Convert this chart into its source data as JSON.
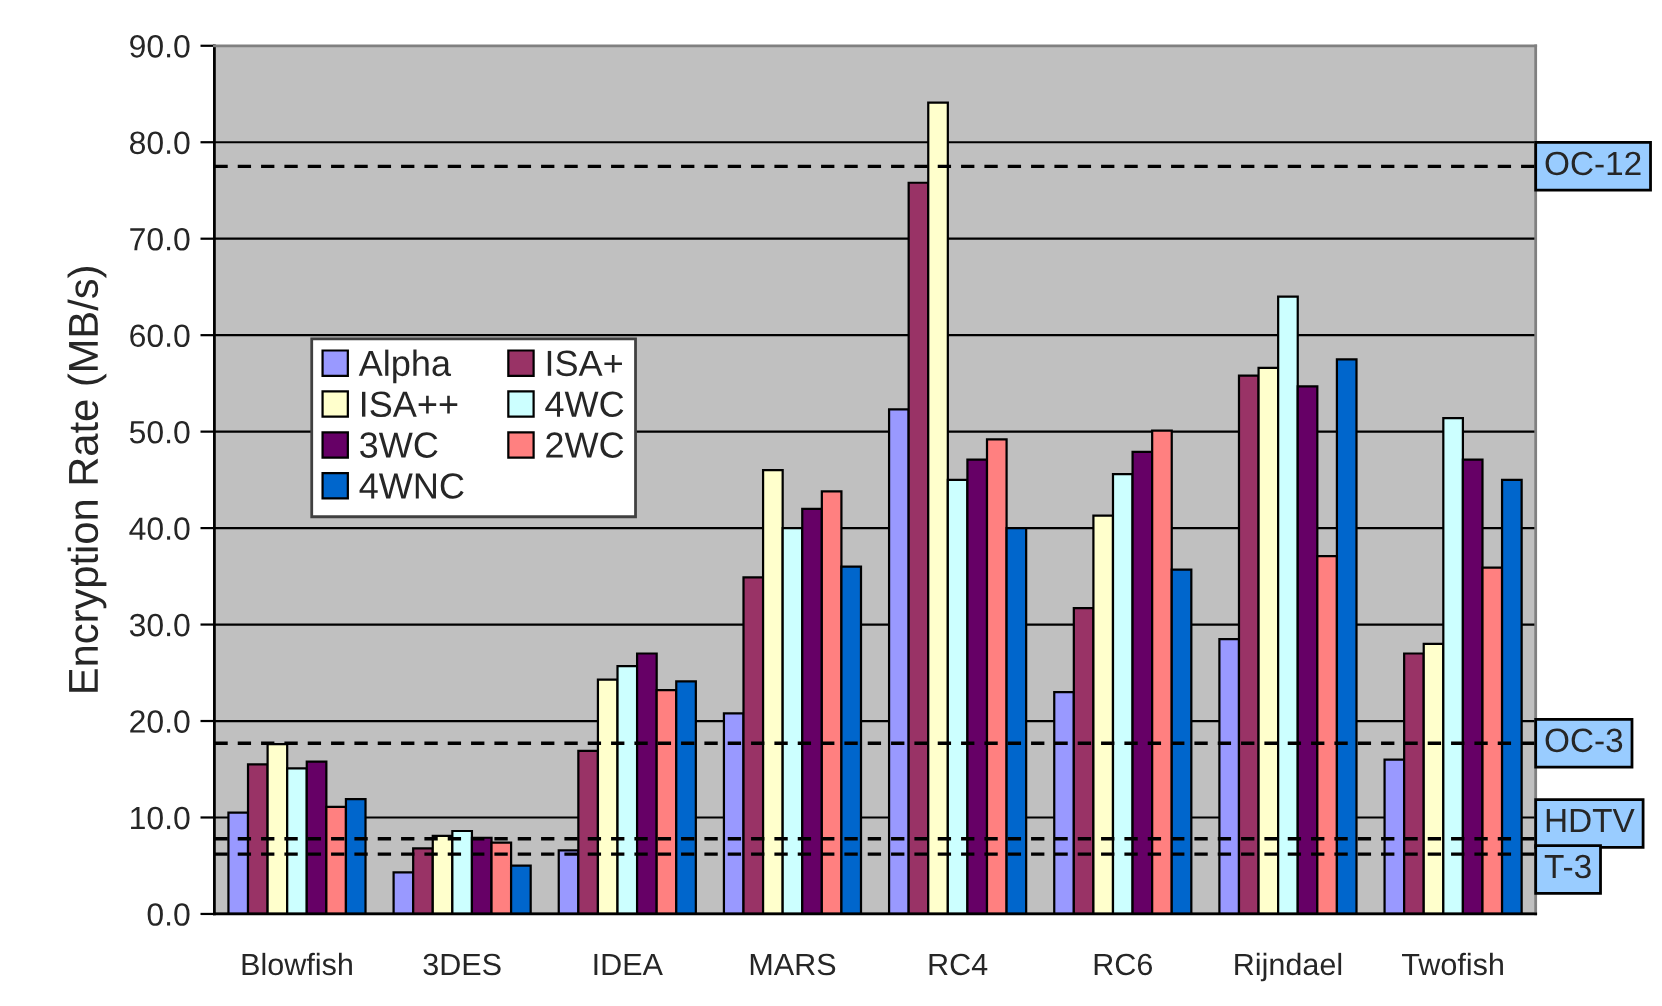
{
  "chart_data": {
    "type": "bar",
    "ylabel": "Encryption Rate (MB/s)",
    "categories": [
      "Blowfish",
      "3DES",
      "IDEA",
      "MARS",
      "RC4",
      "RC6",
      "Rijndael",
      "Twofish"
    ],
    "series": [
      {
        "name": "Alpha",
        "color": "#9999ff",
        "values": [
          10.5,
          4.3,
          6.6,
          20.8,
          52.3,
          23.0,
          28.5,
          16.0
        ]
      },
      {
        "name": "ISA+",
        "color": "#993366",
        "values": [
          15.5,
          6.8,
          16.9,
          34.9,
          75.8,
          31.7,
          55.8,
          27.0
        ]
      },
      {
        "name": "ISA++",
        "color": "#ffffcc",
        "values": [
          17.6,
          8.1,
          24.3,
          46.0,
          84.1,
          41.3,
          56.6,
          28.0
        ]
      },
      {
        "name": "4WC",
        "color": "#ccffff",
        "values": [
          15.1,
          8.6,
          25.7,
          40.0,
          45.0,
          45.6,
          64.0,
          51.4
        ]
      },
      {
        "name": "3WC",
        "color": "#660066",
        "values": [
          15.8,
          7.9,
          27.0,
          42.0,
          47.1,
          47.9,
          54.7,
          47.1
        ]
      },
      {
        "name": "2WC",
        "color": "#ff8080",
        "values": [
          11.1,
          7.4,
          23.2,
          43.8,
          49.2,
          50.1,
          37.1,
          35.9
        ]
      },
      {
        "name": "4WNC",
        "color": "#0066cc",
        "values": [
          11.9,
          5.0,
          24.1,
          36.0,
          40.0,
          35.7,
          57.5,
          45.0
        ]
      }
    ],
    "ylim": [
      0,
      90
    ],
    "yticks": [
      {
        "value": 0,
        "label": "0.0"
      },
      {
        "value": 10,
        "label": "10.0"
      },
      {
        "value": 20,
        "label": "20.0"
      },
      {
        "value": 30,
        "label": "30.0"
      },
      {
        "value": 40,
        "label": "40.0"
      },
      {
        "value": 50,
        "label": "50.0"
      },
      {
        "value": 60,
        "label": "60.0"
      },
      {
        "value": 70,
        "label": "70.0"
      },
      {
        "value": 80,
        "label": "80.0"
      },
      {
        "value": 90,
        "label": "90.0"
      }
    ],
    "grid": "y",
    "legend": "center left",
    "ref_lines": [
      {
        "axis": "y",
        "value": 77.5,
        "label": "OC-12",
        "color": "#000000",
        "line_style": "dashed"
      },
      {
        "axis": "y",
        "value": 17.7,
        "label": "OC-3",
        "color": "#000000",
        "line_style": "dashed"
      },
      {
        "axis": "y",
        "value": 7.8,
        "label": "HDTV",
        "color": "#000000",
        "line_style": "dashed"
      },
      {
        "axis": "y",
        "value": 6.2,
        "label": "T-3",
        "color": "#000000",
        "line_style": "dashed"
      }
    ]
  }
}
